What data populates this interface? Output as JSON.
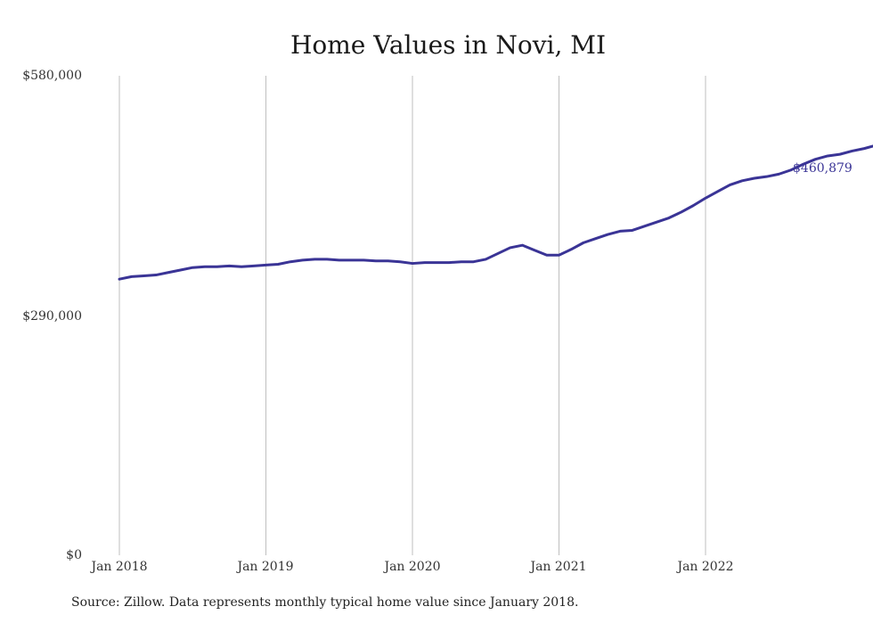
{
  "chart_data": {
    "type": "line",
    "title": "Home Values in Novi, MI",
    "xlabel": "",
    "ylabel": "",
    "x_ticks": [
      "Jan 2018",
      "Jan 2019",
      "Jan 2020",
      "Jan 2021",
      "Jan 2022"
    ],
    "y_ticks": [
      "$580,000",
      "$290,000",
      "$0"
    ],
    "ylim": [
      0,
      580000
    ],
    "x_start": "2018-01",
    "grid": "vertical",
    "line_color": "#3a3496",
    "end_label": "$460,879",
    "series": [
      {
        "values": [
          334000,
          337000,
          338000,
          339000,
          342000,
          345000,
          348000,
          349000,
          349000,
          350000,
          349000,
          350000,
          351000,
          352000,
          355000,
          357000,
          358000,
          358000,
          357000,
          357000,
          357000,
          356000,
          356000,
          355000,
          353000,
          354000,
          354000,
          354000,
          355000,
          355000,
          358000,
          365000,
          372000,
          375000,
          369000,
          363000,
          363000,
          370000,
          378000,
          383000,
          388000,
          392000,
          393000,
          398000,
          403000,
          408000,
          415000,
          423000,
          432000,
          440000,
          448000,
          453000,
          456000,
          458000,
          461000,
          466000,
          473000,
          479000,
          483000,
          485000,
          489000,
          492000,
          496000,
          497000,
          460879
        ]
      }
    ]
  },
  "source_note": "Source: Zillow. Data represents monthly typical home value since January 2018."
}
